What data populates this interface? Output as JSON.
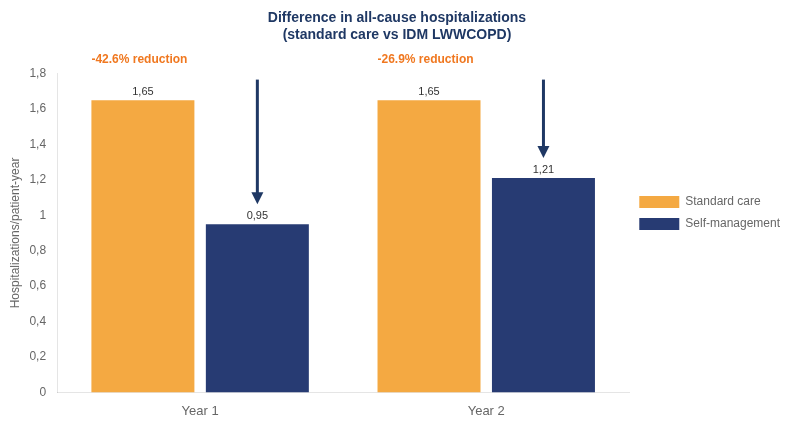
{
  "chart_data": {
    "type": "bar",
    "title": [
      "Difference in all-cause hospitalizations",
      "(standard care vs IDM LWWCOPD)"
    ],
    "categories": [
      "Year 1",
      "Year 2"
    ],
    "series": [
      {
        "name": "Standard care",
        "color": "#F4A942",
        "values": [
          1.65,
          1.65
        ],
        "value_labels": [
          "1,65",
          "1,65"
        ]
      },
      {
        "name": "Self-management",
        "color": "#273B73",
        "values": [
          0.95,
          1.21
        ],
        "value_labels": [
          "0,95",
          "1,21"
        ]
      }
    ],
    "ylabel": "Hospitalizations/patient-year",
    "ylim": [
      0,
      1.8
    ],
    "yticks": [
      0,
      {
        "value": 0.2,
        "label": "0,2"
      },
      {
        "value": 0.4,
        "label": "0,4"
      },
      {
        "value": 0.6,
        "label": "0,6"
      },
      {
        "value": 0.8,
        "label": "0,8"
      },
      1,
      {
        "value": 1.2,
        "label": "1,2"
      },
      {
        "value": 1.4,
        "label": "1,4"
      },
      {
        "value": 1.6,
        "label": "1,6"
      },
      {
        "value": 1.8,
        "label": "1,8"
      }
    ],
    "annotations": [
      {
        "text": "-42.6% reduction",
        "category": "Year 1",
        "color": "#F07820",
        "arrow_to": "Self-management",
        "arrow_color": "#1F3864"
      },
      {
        "text": "-26.9% reduction",
        "category": "Year 2",
        "color": "#F07820",
        "arrow_to": "Self-management",
        "arrow_color": "#1F3864"
      }
    ],
    "data_labels": true,
    "legend": "right",
    "grid": false
  }
}
